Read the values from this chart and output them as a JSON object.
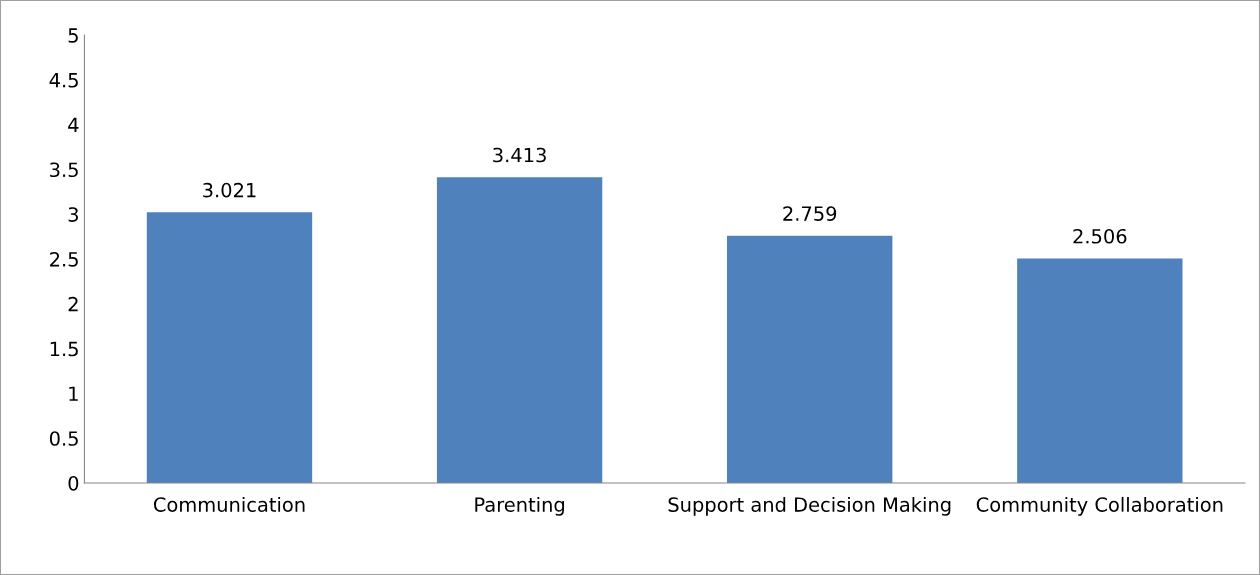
{
  "chart_data": {
    "type": "bar",
    "categories": [
      "Communication",
      "Parenting",
      "Support and Decision Making",
      "Community Collaboration"
    ],
    "values": [
      3.021,
      3.413,
      2.759,
      2.506
    ],
    "color": "#4f81bd",
    "ylim": [
      0,
      5
    ],
    "yticks": [
      0,
      0.5,
      1,
      1.5,
      2,
      2.5,
      3,
      3.5,
      4,
      4.5,
      5
    ],
    "data_labels": true,
    "grid": false,
    "legend": false
  }
}
